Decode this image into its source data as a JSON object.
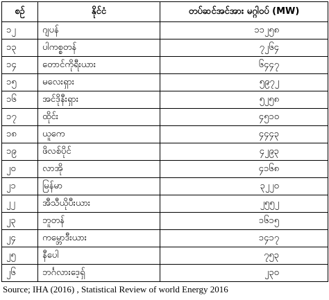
{
  "table": {
    "header": [
      "စဉ်",
      "နိုင်ငံ",
      "တပ်ဆင်အင်အား မဂ္ဂါဝပ် (MW)"
    ],
    "rows": [
      [
        "၁၂",
        "ဂျပန်",
        "၁၁၂၅၈"
      ],
      [
        "၁၃",
        "ပါကစ္စတန်",
        "၇၂၆၄"
      ],
      [
        "၁၄",
        "တောင်ကိုရီးယား",
        "၆၄၄၇"
      ],
      [
        "၁၅",
        "မလေးရှား",
        "၅၉၇၂"
      ],
      [
        "၁၆",
        "အင်ဒိုနီးရှား",
        "၅၂၅၈"
      ],
      [
        "၁၇",
        "ထိုင်း",
        "၄၅၁၀"
      ],
      [
        "၁၈",
        "ယူကေ",
        "၄၄၄၃"
      ],
      [
        "၁၉",
        "ဖိလစ်ပိုင်",
        "၄၂၉၃"
      ],
      [
        "၂၀",
        "လာအို",
        "၄၁၆၈"
      ],
      [
        "၂၁",
        "မြန်မာ",
        "၃၂၂၀"
      ],
      [
        "၂၂",
        "အီသီယိုပီးယား",
        "၂၅၅၂"
      ],
      [
        "၂၃",
        "ဘူတန်",
        "၁၆၁၅"
      ],
      [
        "၂၄",
        "ကမ္ဘောဒီးယား",
        "၁၄၁၇"
      ],
      [
        "၂၅",
        "နီပေါ",
        "၇၅၃"
      ],
      [
        "၂၆",
        "ဘင်္ဂလားဒေ့ရှ်",
        "၂၃၀"
      ]
    ]
  },
  "source": "Source; IHA (2016) , Statistical Review of world Energy 2016"
}
